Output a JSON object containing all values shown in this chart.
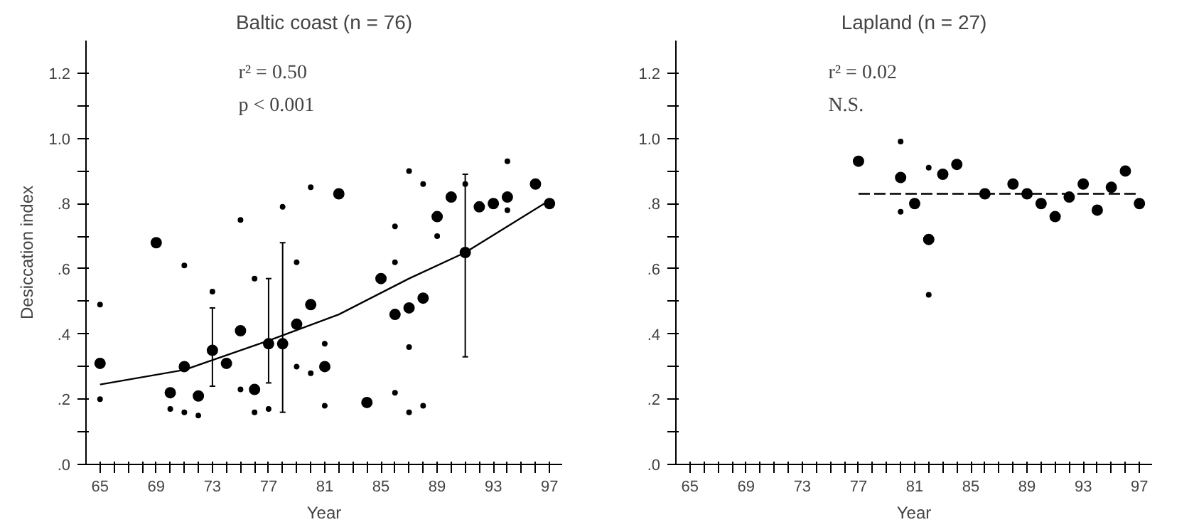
{
  "chart_data": [
    {
      "type": "scatter",
      "title": "Baltic coast (n = 76)",
      "xlabel": "Year",
      "ylabel": "Desiccation index",
      "annotations": [
        "r² = 0.50",
        "p < 0.001"
      ],
      "grid": false,
      "xlim": [
        64,
        97.9
      ],
      "ylim": [
        0,
        1.3
      ],
      "xticks": [
        {
          "value": 65,
          "label": "65"
        },
        {
          "value": 66,
          "label": null
        },
        {
          "value": 67,
          "label": null
        },
        {
          "value": 68,
          "label": null
        },
        {
          "value": 69,
          "label": "69"
        },
        {
          "value": 70,
          "label": null
        },
        {
          "value": 71,
          "label": null
        },
        {
          "value": 72,
          "label": null
        },
        {
          "value": 73,
          "label": "73"
        },
        {
          "value": 74,
          "label": null
        },
        {
          "value": 75,
          "label": null
        },
        {
          "value": 76,
          "label": null
        },
        {
          "value": 77,
          "label": "77"
        },
        {
          "value": 78,
          "label": null
        },
        {
          "value": 79,
          "label": null
        },
        {
          "value": 80,
          "label": null
        },
        {
          "value": 81,
          "label": "81"
        },
        {
          "value": 82,
          "label": null
        },
        {
          "value": 83,
          "label": null
        },
        {
          "value": 84,
          "label": null
        },
        {
          "value": 85,
          "label": "85"
        },
        {
          "value": 86,
          "label": null
        },
        {
          "value": 87,
          "label": null
        },
        {
          "value": 88,
          "label": null
        },
        {
          "value": 89,
          "label": "89"
        },
        {
          "value": 90,
          "label": null
        },
        {
          "value": 91,
          "label": null
        },
        {
          "value": 92,
          "label": null
        },
        {
          "value": 93,
          "label": "93"
        },
        {
          "value": 94,
          "label": null
        },
        {
          "value": 95,
          "label": null
        },
        {
          "value": 96,
          "label": null
        },
        {
          "value": 97,
          "label": "97"
        }
      ],
      "yticks": [
        {
          "value": 0,
          "label": ".0"
        },
        {
          "value": 0.1,
          "label": null
        },
        {
          "value": 0.2,
          "label": ".2"
        },
        {
          "value": 0.3,
          "label": null
        },
        {
          "value": 0.4,
          "label": ".4"
        },
        {
          "value": 0.5,
          "label": null
        },
        {
          "value": 0.6,
          "label": ".6"
        },
        {
          "value": 0.7,
          "label": null
        },
        {
          "value": 0.8,
          "label": ".8"
        },
        {
          "value": 0.9,
          "label": null
        },
        {
          "value": 1.0,
          "label": "1.0"
        },
        {
          "value": 1.1,
          "label": null
        },
        {
          "value": 1.2,
          "label": "1.2"
        }
      ],
      "series": [
        {
          "marker": "circle",
          "color": "#000000",
          "x": [
            65,
            69,
            70,
            71,
            72,
            73,
            74,
            75,
            76,
            77,
            78,
            79,
            80,
            81,
            82,
            84,
            85,
            86,
            87,
            88,
            89,
            90,
            91,
            92,
            93,
            94,
            96,
            97
          ],
          "values": [
            0.31,
            0.68,
            0.22,
            0.3,
            0.21,
            0.35,
            0.31,
            0.41,
            0.23,
            0.37,
            0.37,
            0.43,
            0.49,
            0.3,
            0.83,
            0.19,
            0.57,
            0.46,
            0.48,
            0.51,
            0.76,
            0.82,
            0.65,
            0.79,
            0.8,
            0.82,
            0.86,
            0.8
          ],
          "errors": [
            null,
            null,
            null,
            null,
            null,
            [
              0.24,
              0.48
            ],
            null,
            null,
            null,
            [
              0.25,
              0.57
            ],
            [
              0.16,
              0.68
            ],
            null,
            null,
            null,
            null,
            null,
            null,
            null,
            null,
            null,
            null,
            null,
            [
              0.33,
              0.89
            ],
            null,
            null,
            null,
            null,
            null
          ]
        },
        {
          "marker": "circle",
          "color": "#000000",
          "x": [
            65,
            65,
            70,
            71,
            71,
            72,
            73,
            75,
            75,
            76,
            76,
            77,
            78,
            79,
            79,
            80,
            80,
            81,
            81,
            86,
            86,
            86,
            87,
            87,
            87,
            88,
            88,
            89,
            91,
            94,
            94
          ],
          "values": [
            0.2,
            0.49,
            0.17,
            0.61,
            0.16,
            0.15,
            0.53,
            0.75,
            0.23,
            0.57,
            0.16,
            0.17,
            0.79,
            0.62,
            0.3,
            0.85,
            0.28,
            0.18,
            0.37,
            0.73,
            0.62,
            0.22,
            0.36,
            0.16,
            0.9,
            0.86,
            0.18,
            0.7,
            0.86,
            0.93,
            0.78
          ]
        },
        {
          "type": "line",
          "color": "#000000",
          "x": [
            65,
            71,
            77,
            82,
            87,
            91,
            97
          ],
          "values": [
            0.245,
            0.29,
            0.38,
            0.46,
            0.57,
            0.65,
            0.81
          ]
        }
      ]
    },
    {
      "type": "scatter",
      "title": "Lapland (n = 27)",
      "xlabel": "Year",
      "annotations": [
        "r² = 0.02",
        "N.S."
      ],
      "grid": false,
      "xlim": [
        64,
        97.9
      ],
      "ylim": [
        0,
        1.3
      ],
      "xticks": [
        {
          "value": 65,
          "label": "65"
        },
        {
          "value": 66,
          "label": null
        },
        {
          "value": 67,
          "label": null
        },
        {
          "value": 68,
          "label": null
        },
        {
          "value": 69,
          "label": "69"
        },
        {
          "value": 70,
          "label": null
        },
        {
          "value": 71,
          "label": null
        },
        {
          "value": 72,
          "label": null
        },
        {
          "value": 73,
          "label": "73"
        },
        {
          "value": 74,
          "label": null
        },
        {
          "value": 75,
          "label": null
        },
        {
          "value": 76,
          "label": null
        },
        {
          "value": 77,
          "label": "77"
        },
        {
          "value": 78,
          "label": null
        },
        {
          "value": 79,
          "label": null
        },
        {
          "value": 80,
          "label": null
        },
        {
          "value": 81,
          "label": "81"
        },
        {
          "value": 82,
          "label": null
        },
        {
          "value": 83,
          "label": null
        },
        {
          "value": 84,
          "label": null
        },
        {
          "value": 85,
          "label": "85"
        },
        {
          "value": 86,
          "label": null
        },
        {
          "value": 87,
          "label": null
        },
        {
          "value": 88,
          "label": null
        },
        {
          "value": 89,
          "label": "89"
        },
        {
          "value": 90,
          "label": null
        },
        {
          "value": 91,
          "label": null
        },
        {
          "value": 92,
          "label": null
        },
        {
          "value": 93,
          "label": "93"
        },
        {
          "value": 94,
          "label": null
        },
        {
          "value": 95,
          "label": null
        },
        {
          "value": 96,
          "label": null
        },
        {
          "value": 97,
          "label": "97"
        }
      ],
      "yticks": [
        {
          "value": 0,
          "label": ".0"
        },
        {
          "value": 0.1,
          "label": null
        },
        {
          "value": 0.2,
          "label": ".2"
        },
        {
          "value": 0.3,
          "label": null
        },
        {
          "value": 0.4,
          "label": ".4"
        },
        {
          "value": 0.5,
          "label": null
        },
        {
          "value": 0.6,
          "label": ".6"
        },
        {
          "value": 0.7,
          "label": null
        },
        {
          "value": 0.8,
          "label": ".8"
        },
        {
          "value": 0.9,
          "label": null
        },
        {
          "value": 1.0,
          "label": "1.0"
        },
        {
          "value": 1.1,
          "label": null
        },
        {
          "value": 1.2,
          "label": "1.2"
        }
      ],
      "series": [
        {
          "marker": "circle",
          "color": "#000000",
          "x": [
            77,
            80,
            81,
            82,
            83,
            84,
            86,
            88,
            89,
            90,
            91,
            92,
            93,
            94,
            95,
            96,
            97
          ],
          "values": [
            0.93,
            0.88,
            0.8,
            0.69,
            0.89,
            0.92,
            0.83,
            0.86,
            0.83,
            0.8,
            0.76,
            0.82,
            0.86,
            0.78,
            0.85,
            0.9,
            0.8
          ]
        },
        {
          "marker": "circle",
          "color": "#000000",
          "x": [
            80,
            80,
            82,
            82
          ],
          "values": [
            0.99,
            0.775,
            0.52,
            0.91
          ]
        },
        {
          "type": "line",
          "color": "#000000",
          "line_style": "dashed",
          "x": [
            77,
            97
          ],
          "values": [
            0.83,
            0.83
          ]
        }
      ]
    }
  ]
}
